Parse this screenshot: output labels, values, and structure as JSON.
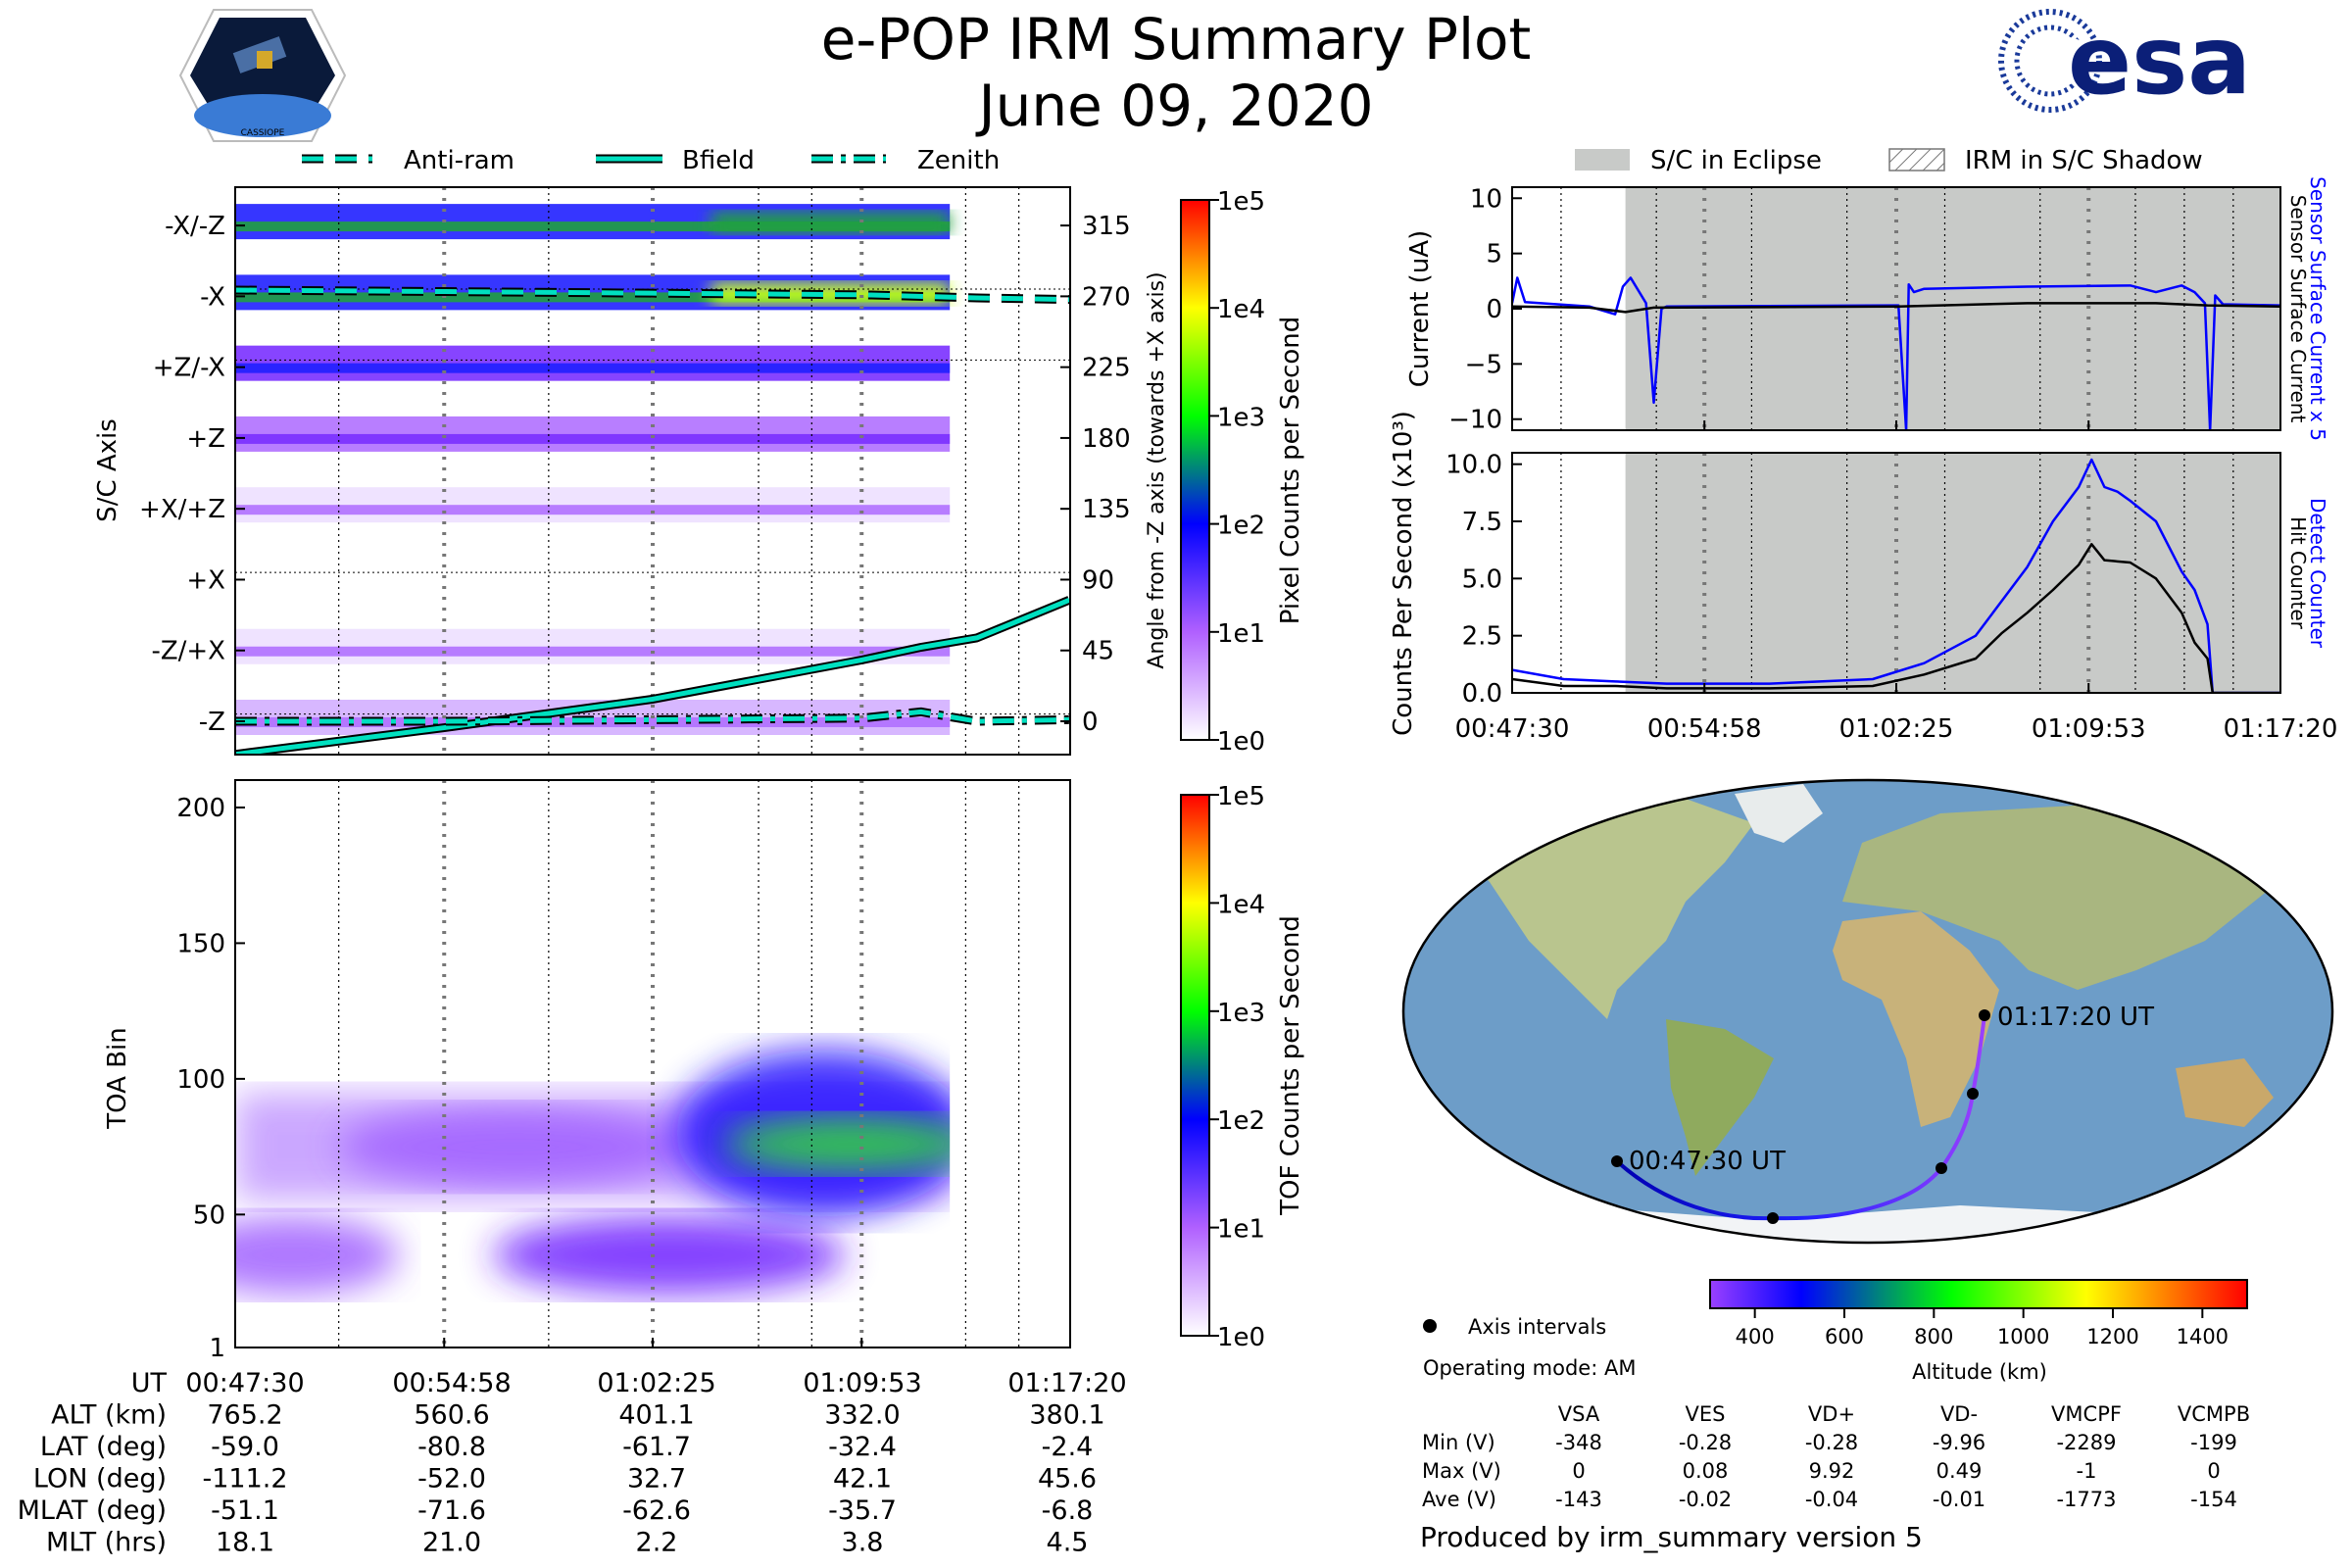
{
  "header": {
    "title": "e-POP IRM Summary Plot",
    "date": "June 09, 2020",
    "left_logo_text": "CASSIOPE",
    "right_logo_text": "esa"
  },
  "legend_top_left": [
    {
      "label": "Anti-ram",
      "style": "dashed"
    },
    {
      "label": "Bfield",
      "style": "solid"
    },
    {
      "label": "Zenith",
      "style": "dashdot"
    }
  ],
  "legend_top_right": [
    {
      "label": "S/C in Eclipse"
    },
    {
      "label": "IRM in S/C Shadow"
    }
  ],
  "colors": {
    "trace": "#00e0c0",
    "eclipse": "#c8cac8",
    "blue": "#0000ff",
    "track_start": "#0000b0",
    "track_end": "#9a40ff"
  },
  "chart_data": [
    {
      "id": "sc-axis",
      "type": "heatmap",
      "ylabel": "S/C Axis",
      "ylabel_right": "Angle from -Z axis (towards +X axis)",
      "colorbar_label": "Pixel Counts per Second",
      "colorbar_ticks": [
        "1e5",
        "1e4",
        "1e3",
        "1e2",
        "1e1",
        "1e0"
      ],
      "xlim": [
        "00:47:30",
        "01:17:20"
      ],
      "ylim": [
        -21,
        339
      ],
      "y_tick_values": [
        315,
        270,
        225,
        180,
        135,
        90,
        45,
        0
      ],
      "y_tick_labels_left": [
        "-X/-Z",
        "-X",
        "+Z/-X",
        "+Z",
        "+X/+Z",
        "+X",
        "-Z/+X",
        "-Z"
      ],
      "y_tick_labels_right": [
        "315",
        "270",
        "225",
        "180",
        "135",
        "90",
        "45",
        "0"
      ],
      "data_end": "01:13:02",
      "bands": [
        {
          "angle": 315,
          "level": 2.3,
          "peak": 2.9
        },
        {
          "angle": 270,
          "level": 2.4,
          "peak": 3.4
        },
        {
          "angle": 225,
          "level": 1.9,
          "peak": 2.0
        },
        {
          "angle": 180,
          "level": 1.2,
          "peak": 1.3
        },
        {
          "angle": 135,
          "level": 0.6,
          "peak": 0.8
        },
        {
          "angle": 45,
          "level": 0.7,
          "peak": 0.9
        },
        {
          "angle": 0,
          "level": 0.9,
          "peak": 1.0
        }
      ],
      "series": [
        {
          "name": "Bfield",
          "x_min": [
            0,
            7.5,
            14.9,
            22.4,
            24.5,
            26.5,
            29.8
          ],
          "y": [
            -21,
            -4,
            14,
            39,
            47,
            53,
            77
          ]
        },
        {
          "name": "Anti-ram",
          "x_min": [
            0,
            7.5,
            14.9,
            22.4,
            26.5,
            29.8
          ],
          "y": [
            274,
            273,
            272,
            271,
            269,
            268
          ]
        },
        {
          "name": "Zenith",
          "x_min": [
            0,
            7.5,
            14.9,
            22.4,
            24.5,
            26.5,
            29.8
          ],
          "y": [
            0,
            0,
            1,
            2,
            6,
            0,
            1
          ]
        }
      ]
    },
    {
      "id": "toa",
      "type": "heatmap",
      "ylabel": "TOA Bin",
      "colorbar_label": "TOF Counts per Second",
      "colorbar_ticks": [
        "1e5",
        "1e4",
        "1e3",
        "1e2",
        "1e1",
        "1e0"
      ],
      "ylim": [
        1,
        210
      ],
      "y_ticks": [
        "200",
        "150",
        "100",
        "50",
        "1"
      ],
      "y_tick_values": [
        200,
        150,
        100,
        50,
        1
      ],
      "blobs": [
        {
          "t_min": 10,
          "bin": 75,
          "level": 1.0
        },
        {
          "t_min": 2,
          "bin": 35,
          "level": 1.2
        },
        {
          "t_min": 15.5,
          "bin": 35,
          "level": 1.5
        },
        {
          "t_min": 21,
          "bin": 80,
          "level": 1.8
        },
        {
          "t_min": 22,
          "bin": 76,
          "level": 2.8
        }
      ]
    },
    {
      "id": "current",
      "type": "line",
      "ylabel": "Current (uA)",
      "ylabel_right_blue": "Sensor Surface Current x 5",
      "ylabel_right_black": "Sensor Surface Current",
      "ylim": [
        -11,
        11
      ],
      "y_ticks": [
        "10",
        "5",
        "0",
        "−5",
        "−10"
      ],
      "y_tick_values": [
        10,
        5,
        0,
        -5,
        -10
      ],
      "eclipse_start_min": 4.4,
      "series": [
        {
          "name": "Sensor Surface Current x 5",
          "color": "#0000ff",
          "x_min": [
            0,
            0.2,
            0.5,
            3,
            4.0,
            4.3,
            4.6,
            5.2,
            5.5,
            5.8,
            6.0,
            15,
            15.3,
            15.4,
            15.6,
            16,
            20,
            24,
            25,
            26,
            26.5,
            26.9,
            27.1,
            27.3,
            27.6,
            29.8
          ],
          "y": [
            0.5,
            2.8,
            0.6,
            0.2,
            -0.5,
            2,
            2.8,
            0.5,
            -8.5,
            0,
            0.2,
            0.3,
            -11,
            2.2,
            1.5,
            1.8,
            2.0,
            2.1,
            1.5,
            2.1,
            1.5,
            0.5,
            -11,
            1.2,
            0.4,
            0.3
          ]
        },
        {
          "name": "Sensor Surface Current",
          "color": "#000000",
          "x_min": [
            0,
            3,
            4.4,
            5.5,
            15,
            20,
            25,
            27,
            29.8
          ],
          "y": [
            0.2,
            0.1,
            -0.3,
            0.1,
            0.2,
            0.5,
            0.5,
            0.3,
            0.2
          ]
        }
      ]
    },
    {
      "id": "counts",
      "type": "line",
      "ylabel": "Counts Per Second (x10³)",
      "ylabel_right_blue": "Detect Counter",
      "ylabel_right_black": "Hit Counter",
      "ylim": [
        0,
        10.5
      ],
      "y_ticks": [
        "10.0",
        "7.5",
        "5.0",
        "2.5",
        "0.0"
      ],
      "y_tick_values": [
        10,
        7.5,
        5,
        2.5,
        0
      ],
      "x_ticks": [
        "00:47:30",
        "00:54:58",
        "01:02:25",
        "01:09:53",
        "01:17:20"
      ],
      "series": [
        {
          "name": "Detect Counter",
          "color": "#0000ff",
          "x_min": [
            0,
            2,
            4,
            6,
            10,
            14,
            16,
            18,
            19,
            20,
            21,
            22,
            22.5,
            23,
            23.5,
            24,
            25,
            26,
            26.5,
            27,
            27.2,
            29.8
          ],
          "y": [
            1.0,
            0.6,
            0.5,
            0.4,
            0.4,
            0.6,
            1.3,
            2.5,
            4,
            5.5,
            7.5,
            9.0,
            10.2,
            9.0,
            8.8,
            8.4,
            7.5,
            5.3,
            4.5,
            3.0,
            0,
            0
          ]
        },
        {
          "name": "Hit Counter",
          "color": "#000000",
          "x_min": [
            0,
            2,
            4,
            6,
            10,
            14,
            16,
            18,
            19,
            20,
            21,
            22,
            22.5,
            23,
            24,
            25,
            26,
            26.5,
            27,
            27.2,
            29.8
          ],
          "y": [
            0.6,
            0.3,
            0.3,
            0.2,
            0.2,
            0.3,
            0.8,
            1.5,
            2.6,
            3.5,
            4.5,
            5.6,
            6.5,
            5.8,
            5.7,
            5.0,
            3.5,
            2.2,
            1.5,
            0,
            0
          ]
        }
      ]
    },
    {
      "id": "orbit-map",
      "type": "scatter",
      "track_lon": [
        -111.2,
        -90,
        -52,
        -10,
        20,
        32.7,
        38,
        42.1,
        45.6
      ],
      "track_lat": [
        -59,
        -72,
        -80.8,
        -78,
        -70,
        -61.7,
        -45,
        -32.4,
        -2.4
      ],
      "labels": [
        "00:47:30 UT",
        "01:17:20 UT"
      ],
      "colorbar_label": "Altitude (km)",
      "colorbar_ticks": [
        "400",
        "600",
        "800",
        "1000",
        "1200",
        "1400"
      ],
      "colorbar_range": [
        300,
        1500
      ],
      "legend_label": "Axis intervals"
    }
  ],
  "ephemeris": {
    "row_labels": [
      "UT",
      "ALT (km)",
      "LAT (deg)",
      "LON (deg)",
      "MLAT (deg)",
      "MLT (hrs)"
    ],
    "columns": [
      [
        "00:47:30",
        "765.2",
        "-59.0",
        "-111.2",
        "-51.1",
        "18.1"
      ],
      [
        "00:54:58",
        "560.6",
        "-80.8",
        "-52.0",
        "-71.6",
        "21.0"
      ],
      [
        "01:02:25",
        "401.1",
        "-61.7",
        "32.7",
        "-62.6",
        "2.2"
      ],
      [
        "01:09:53",
        "332.0",
        "-32.4",
        "42.1",
        "-35.7",
        "3.8"
      ],
      [
        "01:17:20",
        "380.1",
        "-2.4",
        "45.6",
        "-6.8",
        "4.5"
      ]
    ]
  },
  "operating_mode": "Operating mode: AM",
  "voltages": {
    "headers": [
      "VSA",
      "VES",
      "VD+",
      "VD-",
      "VMCPF",
      "VCMPB"
    ],
    "rows": [
      {
        "label": "Min (V)",
        "values": [
          "-348",
          "-0.28",
          "-0.28",
          "-9.96",
          "-2289",
          "-199"
        ]
      },
      {
        "label": "Max (V)",
        "values": [
          "0",
          "0.08",
          "9.92",
          "0.49",
          "-1",
          "0"
        ]
      },
      {
        "label": "Ave (V)",
        "values": [
          "-143",
          "-0.02",
          "-0.04",
          "-0.01",
          "-1773",
          "-154"
        ]
      }
    ]
  },
  "footer": "Produced by irm_summary version 5"
}
